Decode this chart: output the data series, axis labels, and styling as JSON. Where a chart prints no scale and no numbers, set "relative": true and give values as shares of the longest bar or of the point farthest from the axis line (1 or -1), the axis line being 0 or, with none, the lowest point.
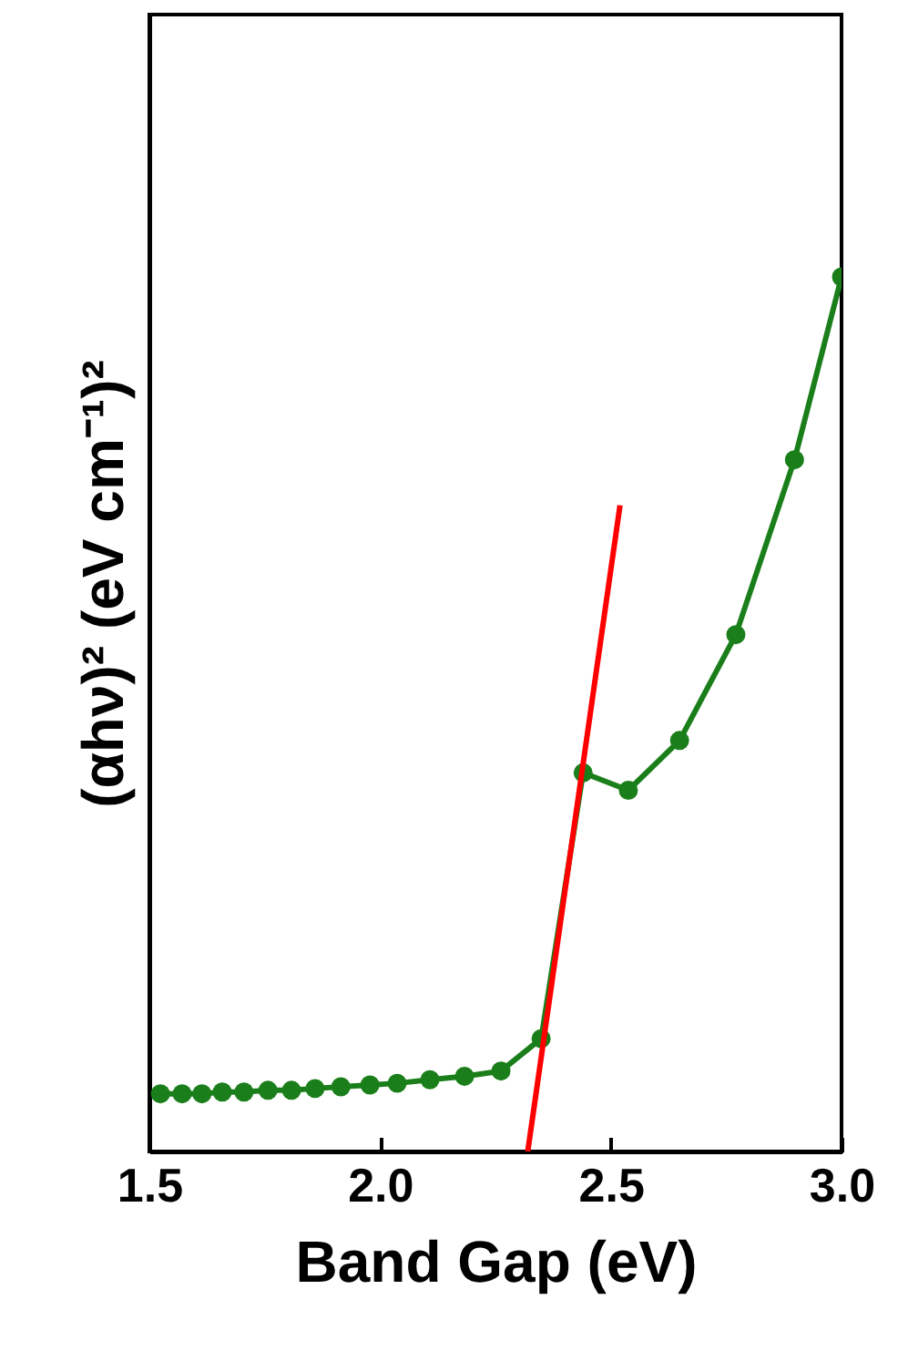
{
  "chart_data": {
    "type": "line",
    "relative": true,
    "xlabel": "Band Gap (eV)",
    "ylabel": "(αhν)² (eV cm⁻¹)²",
    "xlim": [
      1.5,
      3.0
    ],
    "xticks": [
      1.5,
      {
        "value": 2,
        "label": "2.0"
      },
      2.5,
      {
        "value": 3,
        "label": "3.0"
      }
    ],
    "series": [
      {
        "color": "#1a7f1a",
        "marker": "circle",
        "x": [
          1.524,
          1.571,
          1.614,
          1.658,
          1.705,
          1.757,
          1.808,
          1.859,
          1.915,
          1.978,
          2.037,
          2.108,
          2.183,
          2.262,
          2.349,
          2.44,
          2.538,
          2.649,
          2.771,
          2.898,
          3.0
        ],
        "values": [
          0.066,
          0.066,
          0.066,
          0.068,
          0.068,
          0.07,
          0.07,
          0.072,
          0.074,
          0.076,
          0.078,
          0.082,
          0.086,
          0.092,
          0.129,
          0.433,
          0.413,
          0.47,
          0.591,
          0.791,
          1
        ]
      },
      {
        "color": "#ff0000",
        "marker": "none",
        "x": [
          2.32,
          2.52
        ],
        "values": [
          0,
          0.739
        ]
      }
    ]
  }
}
